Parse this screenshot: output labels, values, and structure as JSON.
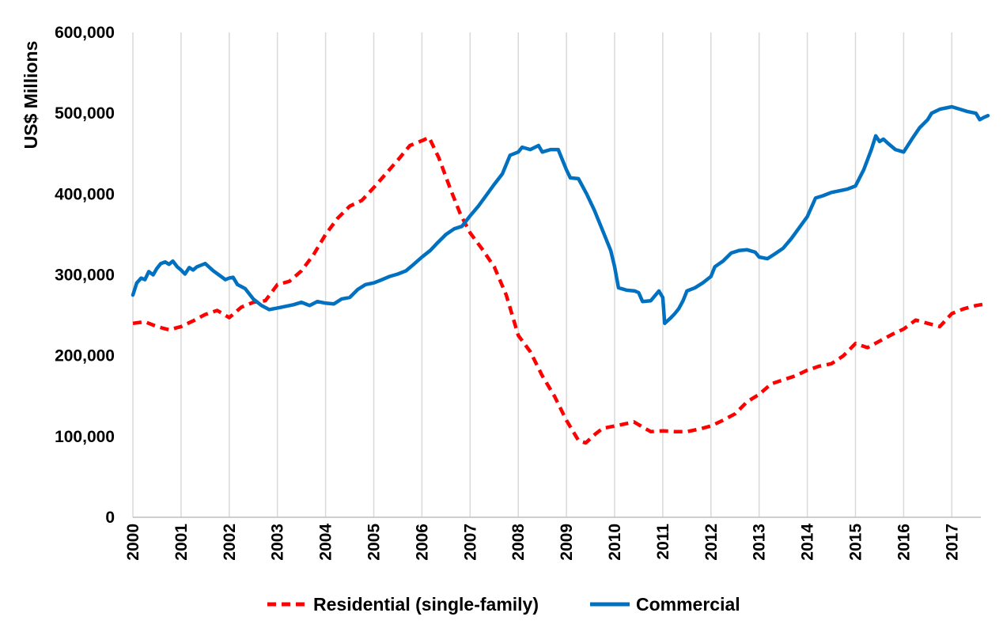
{
  "chart_data": {
    "type": "line",
    "ylabel": "US$ Millions",
    "xlabel": "",
    "title": "",
    "ylim": [
      0,
      600000
    ],
    "xlim": [
      2000,
      2017.75
    ],
    "grid": "vertical",
    "legend_position": "bottom",
    "y_ticks": [
      0,
      100000,
      200000,
      300000,
      400000,
      500000,
      600000
    ],
    "y_tick_labels": [
      "0",
      "100,000",
      "200,000",
      "300,000",
      "400,000",
      "500,000",
      "600,000"
    ],
    "x_ticks": [
      2000,
      2001,
      2002,
      2003,
      2004,
      2005,
      2006,
      2007,
      2008,
      2009,
      2010,
      2011,
      2012,
      2013,
      2014,
      2015,
      2016,
      2017
    ],
    "x_tick_labels": [
      "2000",
      "2001",
      "2002",
      "2003",
      "2004",
      "2005",
      "2006",
      "2007",
      "2008",
      "2009",
      "2010",
      "2011",
      "2012",
      "2013",
      "2014",
      "2015",
      "2016",
      "2017"
    ],
    "series": [
      {
        "name": "Residential (single-family)",
        "color": "#ff0000",
        "style": "dashed",
        "points": [
          [
            2000.0,
            240000
          ],
          [
            2000.25,
            242000
          ],
          [
            2000.5,
            236000
          ],
          [
            2000.75,
            232000
          ],
          [
            2001.0,
            236000
          ],
          [
            2001.25,
            243000
          ],
          [
            2001.5,
            251000
          ],
          [
            2001.75,
            256000
          ],
          [
            2002.0,
            247000
          ],
          [
            2002.25,
            260000
          ],
          [
            2002.5,
            266000
          ],
          [
            2002.75,
            268000
          ],
          [
            2003.0,
            288000
          ],
          [
            2003.25,
            292000
          ],
          [
            2003.5,
            305000
          ],
          [
            2003.75,
            325000
          ],
          [
            2004.0,
            350000
          ],
          [
            2004.25,
            370000
          ],
          [
            2004.5,
            385000
          ],
          [
            2004.75,
            392000
          ],
          [
            2005.0,
            408000
          ],
          [
            2005.25,
            425000
          ],
          [
            2005.5,
            442000
          ],
          [
            2005.75,
            460000
          ],
          [
            2006.0,
            466000
          ],
          [
            2006.15,
            470000
          ],
          [
            2006.35,
            445000
          ],
          [
            2006.6,
            405000
          ],
          [
            2006.8,
            375000
          ],
          [
            2007.0,
            352000
          ],
          [
            2007.25,
            332000
          ],
          [
            2007.5,
            310000
          ],
          [
            2007.75,
            275000
          ],
          [
            2008.0,
            225000
          ],
          [
            2008.25,
            205000
          ],
          [
            2008.5,
            175000
          ],
          [
            2008.75,
            150000
          ],
          [
            2009.0,
            120000
          ],
          [
            2009.25,
            95000
          ],
          [
            2009.4,
            92000
          ],
          [
            2009.6,
            103000
          ],
          [
            2009.75,
            110000
          ],
          [
            2010.0,
            113000
          ],
          [
            2010.25,
            116000
          ],
          [
            2010.4,
            118000
          ],
          [
            2010.6,
            111000
          ],
          [
            2010.75,
            106000
          ],
          [
            2011.0,
            107000
          ],
          [
            2011.25,
            106000
          ],
          [
            2011.5,
            106000
          ],
          [
            2011.75,
            109000
          ],
          [
            2012.0,
            113000
          ],
          [
            2012.25,
            120000
          ],
          [
            2012.5,
            128000
          ],
          [
            2012.75,
            143000
          ],
          [
            2013.0,
            152000
          ],
          [
            2013.25,
            165000
          ],
          [
            2013.5,
            170000
          ],
          [
            2013.75,
            175000
          ],
          [
            2014.0,
            182000
          ],
          [
            2014.25,
            187000
          ],
          [
            2014.5,
            190000
          ],
          [
            2014.75,
            200000
          ],
          [
            2015.0,
            215000
          ],
          [
            2015.25,
            210000
          ],
          [
            2015.5,
            218000
          ],
          [
            2015.75,
            226000
          ],
          [
            2016.0,
            233000
          ],
          [
            2016.25,
            244000
          ],
          [
            2016.5,
            240000
          ],
          [
            2016.75,
            236000
          ],
          [
            2017.0,
            252000
          ],
          [
            2017.25,
            258000
          ],
          [
            2017.5,
            262000
          ],
          [
            2017.7,
            264000
          ]
        ]
      },
      {
        "name": "Commercial",
        "color": "#0070c0",
        "style": "solid",
        "points": [
          [
            2000.0,
            275000
          ],
          [
            2000.08,
            290000
          ],
          [
            2000.17,
            296000
          ],
          [
            2000.25,
            294000
          ],
          [
            2000.33,
            304000
          ],
          [
            2000.42,
            300000
          ],
          [
            2000.5,
            308000
          ],
          [
            2000.58,
            314000
          ],
          [
            2000.67,
            316000
          ],
          [
            2000.75,
            313000
          ],
          [
            2000.83,
            317000
          ],
          [
            2000.92,
            310000
          ],
          [
            2001.0,
            306000
          ],
          [
            2001.08,
            301000
          ],
          [
            2001.17,
            309000
          ],
          [
            2001.25,
            306000
          ],
          [
            2001.33,
            310000
          ],
          [
            2001.42,
            312000
          ],
          [
            2001.5,
            314000
          ],
          [
            2001.67,
            305000
          ],
          [
            2001.83,
            298000
          ],
          [
            2001.92,
            294000
          ],
          [
            2002.0,
            296000
          ],
          [
            2002.08,
            297000
          ],
          [
            2002.17,
            288000
          ],
          [
            2002.33,
            283000
          ],
          [
            2002.5,
            270000
          ],
          [
            2002.67,
            262000
          ],
          [
            2002.83,
            257000
          ],
          [
            2003.0,
            259000
          ],
          [
            2003.17,
            261000
          ],
          [
            2003.33,
            263000
          ],
          [
            2003.5,
            266000
          ],
          [
            2003.67,
            262000
          ],
          [
            2003.83,
            267000
          ],
          [
            2004.0,
            265000
          ],
          [
            2004.17,
            264000
          ],
          [
            2004.33,
            270000
          ],
          [
            2004.5,
            272000
          ],
          [
            2004.67,
            282000
          ],
          [
            2004.83,
            288000
          ],
          [
            2005.0,
            290000
          ],
          [
            2005.17,
            294000
          ],
          [
            2005.33,
            298000
          ],
          [
            2005.5,
            301000
          ],
          [
            2005.67,
            305000
          ],
          [
            2005.83,
            313000
          ],
          [
            2006.0,
            322000
          ],
          [
            2006.17,
            330000
          ],
          [
            2006.33,
            340000
          ],
          [
            2006.5,
            350000
          ],
          [
            2006.67,
            357000
          ],
          [
            2006.83,
            360000
          ],
          [
            2007.0,
            373000
          ],
          [
            2007.17,
            385000
          ],
          [
            2007.33,
            398000
          ],
          [
            2007.5,
            412000
          ],
          [
            2007.67,
            425000
          ],
          [
            2007.83,
            448000
          ],
          [
            2008.0,
            452000
          ],
          [
            2008.08,
            458000
          ],
          [
            2008.25,
            455000
          ],
          [
            2008.42,
            460000
          ],
          [
            2008.5,
            452000
          ],
          [
            2008.67,
            455000
          ],
          [
            2008.83,
            455000
          ],
          [
            2009.0,
            430000
          ],
          [
            2009.08,
            420000
          ],
          [
            2009.25,
            419000
          ],
          [
            2009.42,
            400000
          ],
          [
            2009.58,
            380000
          ],
          [
            2009.75,
            355000
          ],
          [
            2009.92,
            330000
          ],
          [
            2010.0,
            310000
          ],
          [
            2010.08,
            284000
          ],
          [
            2010.25,
            281000
          ],
          [
            2010.42,
            280000
          ],
          [
            2010.5,
            278000
          ],
          [
            2010.58,
            267000
          ],
          [
            2010.75,
            268000
          ],
          [
            2010.92,
            280000
          ],
          [
            2011.0,
            272000
          ],
          [
            2011.04,
            240000
          ],
          [
            2011.17,
            247000
          ],
          [
            2011.25,
            252000
          ],
          [
            2011.33,
            258000
          ],
          [
            2011.42,
            268000
          ],
          [
            2011.5,
            280000
          ],
          [
            2011.67,
            284000
          ],
          [
            2011.83,
            290000
          ],
          [
            2012.0,
            298000
          ],
          [
            2012.08,
            310000
          ],
          [
            2012.25,
            317000
          ],
          [
            2012.42,
            327000
          ],
          [
            2012.58,
            330000
          ],
          [
            2012.75,
            331000
          ],
          [
            2012.92,
            328000
          ],
          [
            2013.0,
            322000
          ],
          [
            2013.17,
            320000
          ],
          [
            2013.33,
            326000
          ],
          [
            2013.5,
            333000
          ],
          [
            2013.67,
            345000
          ],
          [
            2013.83,
            358000
          ],
          [
            2014.0,
            372000
          ],
          [
            2014.17,
            395000
          ],
          [
            2014.33,
            398000
          ],
          [
            2014.5,
            402000
          ],
          [
            2014.67,
            404000
          ],
          [
            2014.83,
            406000
          ],
          [
            2015.0,
            410000
          ],
          [
            2015.17,
            430000
          ],
          [
            2015.33,
            455000
          ],
          [
            2015.42,
            472000
          ],
          [
            2015.5,
            465000
          ],
          [
            2015.58,
            468000
          ],
          [
            2015.67,
            463000
          ],
          [
            2015.83,
            455000
          ],
          [
            2016.0,
            452000
          ],
          [
            2016.17,
            468000
          ],
          [
            2016.33,
            482000
          ],
          [
            2016.5,
            492000
          ],
          [
            2016.58,
            500000
          ],
          [
            2016.75,
            505000
          ],
          [
            2016.92,
            507000
          ],
          [
            2017.0,
            508000
          ],
          [
            2017.17,
            505000
          ],
          [
            2017.33,
            502000
          ],
          [
            2017.5,
            500000
          ],
          [
            2017.58,
            492000
          ],
          [
            2017.67,
            495000
          ],
          [
            2017.75,
            497000
          ]
        ]
      }
    ]
  }
}
